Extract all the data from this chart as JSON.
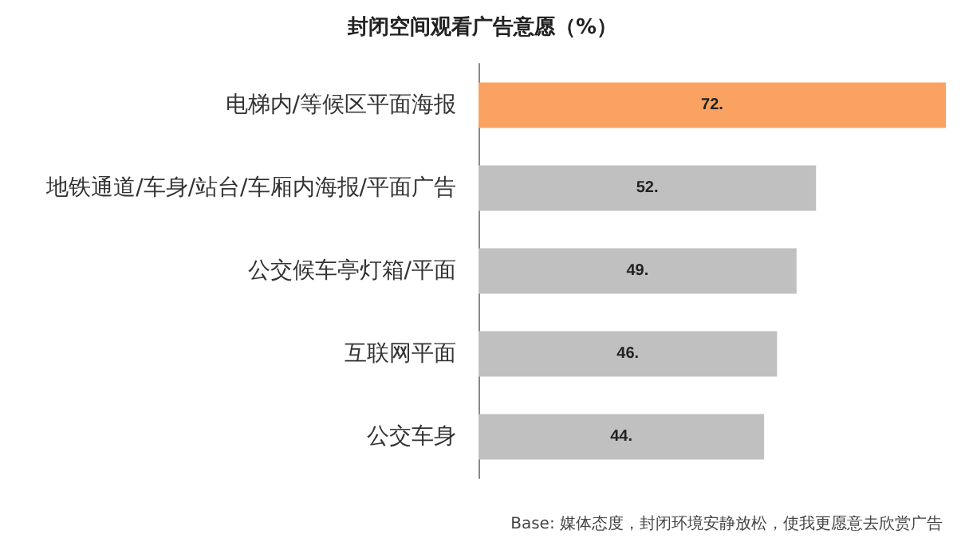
{
  "chart_data": {
    "type": "bar",
    "orientation": "horizontal",
    "title": "封闭空间观看广告意愿（%）",
    "categories": [
      "电梯内/等候区平面海报",
      "地铁通道/车身/站台/车厢内海报/平面广告",
      "公交候车亭灯箱/平面",
      "互联网平面",
      "公交车身"
    ],
    "values": [
      72,
      52,
      49,
      46,
      44
    ],
    "value_labels": [
      "72.",
      "52.",
      "49.",
      "46.",
      "44."
    ],
    "colors": [
      "#f9a261",
      "#c0c0c0",
      "#c0c0c0",
      "#c0c0c0",
      "#c0c0c0"
    ],
    "annotations": [
      "Base: 媒体态度，封闭环境安静放松，使我更愿意去欣赏广告"
    ]
  }
}
